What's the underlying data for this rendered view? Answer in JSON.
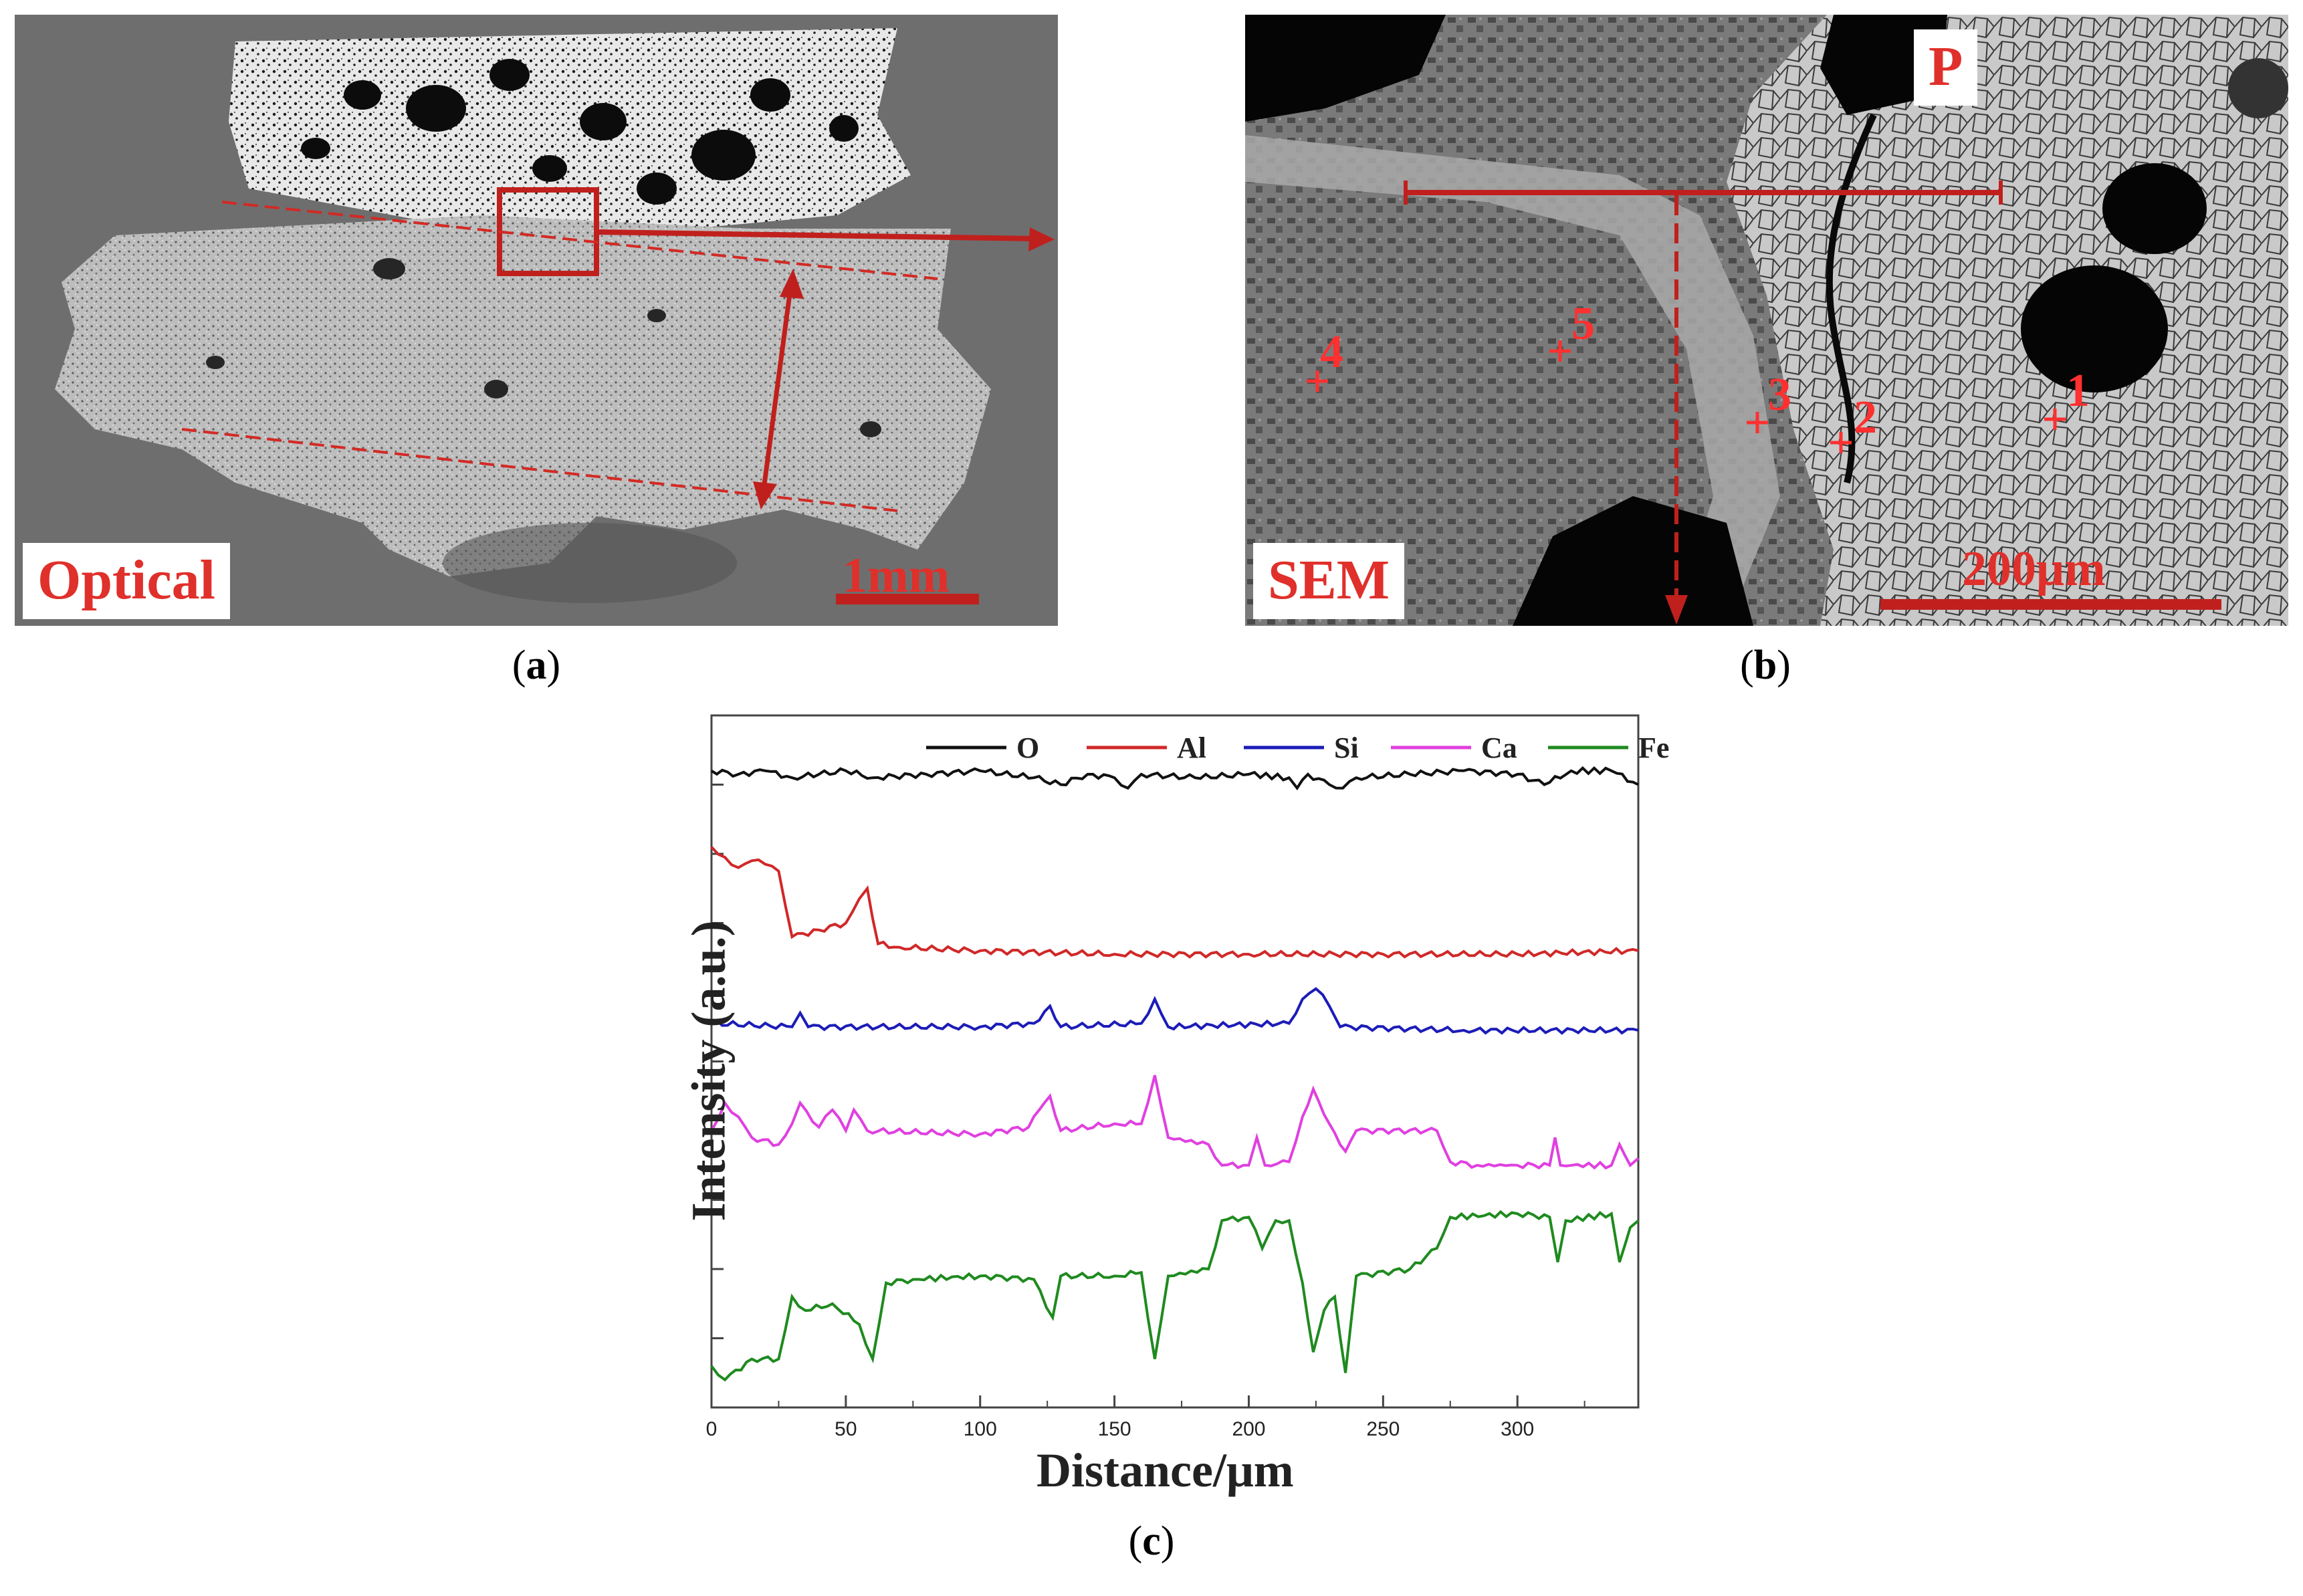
{
  "panels": {
    "a": {
      "caption": "a",
      "label": "Optical",
      "scale_bar": "1mm"
    },
    "b": {
      "caption": "b",
      "label": "SEM",
      "scale_bar": "200μm",
      "region_label": "P",
      "points": [
        "1",
        "2",
        "3",
        "4",
        "5"
      ]
    },
    "c": {
      "caption": "c"
    }
  },
  "colors": {
    "annotation_red": "#e0302b",
    "O": "#111111",
    "Al": "#d02828",
    "Si": "#1c1cb8",
    "Ca": "#e040e0",
    "Fe": "#1f8a1f"
  },
  "chart_data": {
    "type": "line",
    "xlabel": "Distance/μm",
    "ylabel": "Intensity (a.u.)",
    "xlim": [
      0,
      345
    ],
    "x_ticks": [
      0,
      50,
      100,
      150,
      200,
      250,
      300
    ],
    "grid": false,
    "legend_position": "top",
    "series": [
      {
        "name": "O",
        "points": [
          [
            0,
            9.2
          ],
          [
            10,
            9.15
          ],
          [
            20,
            9.2
          ],
          [
            30,
            9.1
          ],
          [
            40,
            9.15
          ],
          [
            50,
            9.2
          ],
          [
            60,
            9.1
          ],
          [
            80,
            9.15
          ],
          [
            100,
            9.2
          ],
          [
            120,
            9.1
          ],
          [
            130,
            9.0
          ],
          [
            140,
            9.15
          ],
          [
            150,
            9.1
          ],
          [
            155,
            8.95
          ],
          [
            160,
            9.15
          ],
          [
            180,
            9.1
          ],
          [
            200,
            9.15
          ],
          [
            215,
            9.1
          ],
          [
            218,
            8.95
          ],
          [
            222,
            9.15
          ],
          [
            230,
            9.0
          ],
          [
            235,
            8.95
          ],
          [
            240,
            9.1
          ],
          [
            260,
            9.15
          ],
          [
            280,
            9.2
          ],
          [
            300,
            9.15
          ],
          [
            310,
            9.0
          ],
          [
            320,
            9.2
          ],
          [
            335,
            9.2
          ],
          [
            345,
            9.0
          ]
        ]
      },
      {
        "name": "Al",
        "points": [
          [
            0,
            8.1
          ],
          [
            5,
            7.95
          ],
          [
            10,
            7.8
          ],
          [
            15,
            7.9
          ],
          [
            20,
            7.85
          ],
          [
            25,
            7.75
          ],
          [
            30,
            6.8
          ],
          [
            40,
            6.9
          ],
          [
            50,
            7.0
          ],
          [
            55,
            7.35
          ],
          [
            58,
            7.5
          ],
          [
            62,
            6.7
          ],
          [
            70,
            6.65
          ],
          [
            100,
            6.6
          ],
          [
            150,
            6.55
          ],
          [
            200,
            6.55
          ],
          [
            250,
            6.55
          ],
          [
            300,
            6.55
          ],
          [
            345,
            6.6
          ]
        ]
      },
      {
        "name": "Si",
        "points": [
          [
            0,
            5.55
          ],
          [
            30,
            5.5
          ],
          [
            33,
            5.7
          ],
          [
            36,
            5.5
          ],
          [
            100,
            5.5
          ],
          [
            120,
            5.55
          ],
          [
            126,
            5.8
          ],
          [
            130,
            5.5
          ],
          [
            160,
            5.55
          ],
          [
            165,
            5.9
          ],
          [
            170,
            5.5
          ],
          [
            215,
            5.55
          ],
          [
            220,
            5.9
          ],
          [
            225,
            6.05
          ],
          [
            230,
            5.8
          ],
          [
            234,
            5.5
          ],
          [
            280,
            5.45
          ],
          [
            345,
            5.45
          ]
        ]
      },
      {
        "name": "Ca",
        "points": [
          [
            0,
            4.0
          ],
          [
            5,
            4.4
          ],
          [
            10,
            4.2
          ],
          [
            15,
            3.9
          ],
          [
            25,
            3.8
          ],
          [
            30,
            4.1
          ],
          [
            33,
            4.4
          ],
          [
            40,
            4.05
          ],
          [
            45,
            4.3
          ],
          [
            50,
            4.0
          ],
          [
            53,
            4.3
          ],
          [
            58,
            4.0
          ],
          [
            100,
            3.95
          ],
          [
            118,
            4.05
          ],
          [
            122,
            4.3
          ],
          [
            126,
            4.5
          ],
          [
            130,
            4.0
          ],
          [
            150,
            4.1
          ],
          [
            160,
            4.1
          ],
          [
            165,
            4.8
          ],
          [
            170,
            3.9
          ],
          [
            185,
            3.8
          ],
          [
            190,
            3.5
          ],
          [
            200,
            3.5
          ],
          [
            203,
            3.9
          ],
          [
            206,
            3.5
          ],
          [
            215,
            3.55
          ],
          [
            220,
            4.2
          ],
          [
            224,
            4.6
          ],
          [
            230,
            4.1
          ],
          [
            236,
            3.7
          ],
          [
            240,
            4.0
          ],
          [
            270,
            4.0
          ],
          [
            275,
            3.55
          ],
          [
            285,
            3.5
          ],
          [
            300,
            3.5
          ],
          [
            312,
            3.5
          ],
          [
            314,
            3.9
          ],
          [
            316,
            3.5
          ],
          [
            335,
            3.5
          ],
          [
            338,
            3.8
          ],
          [
            342,
            3.5
          ],
          [
            345,
            3.6
          ]
        ]
      },
      {
        "name": "Fe",
        "points": [
          [
            0,
            0.6
          ],
          [
            5,
            0.4
          ],
          [
            15,
            0.7
          ],
          [
            25,
            0.7
          ],
          [
            30,
            1.6
          ],
          [
            35,
            1.4
          ],
          [
            45,
            1.5
          ],
          [
            55,
            1.2
          ],
          [
            60,
            0.7
          ],
          [
            65,
            1.8
          ],
          [
            75,
            1.85
          ],
          [
            100,
            1.9
          ],
          [
            120,
            1.85
          ],
          [
            127,
            1.3
          ],
          [
            130,
            1.9
          ],
          [
            150,
            1.9
          ],
          [
            160,
            1.95
          ],
          [
            165,
            0.7
          ],
          [
            170,
            1.9
          ],
          [
            185,
            2.0
          ],
          [
            190,
            2.7
          ],
          [
            200,
            2.75
          ],
          [
            205,
            2.3
          ],
          [
            210,
            2.7
          ],
          [
            215,
            2.7
          ],
          [
            220,
            1.8
          ],
          [
            224,
            0.8
          ],
          [
            228,
            1.4
          ],
          [
            232,
            1.6
          ],
          [
            236,
            0.5
          ],
          [
            240,
            1.9
          ],
          [
            260,
            2.0
          ],
          [
            270,
            2.3
          ],
          [
            275,
            2.75
          ],
          [
            300,
            2.8
          ],
          [
            312,
            2.75
          ],
          [
            315,
            2.1
          ],
          [
            318,
            2.7
          ],
          [
            335,
            2.8
          ],
          [
            338,
            2.1
          ],
          [
            342,
            2.6
          ],
          [
            345,
            2.7
          ]
        ]
      }
    ]
  }
}
